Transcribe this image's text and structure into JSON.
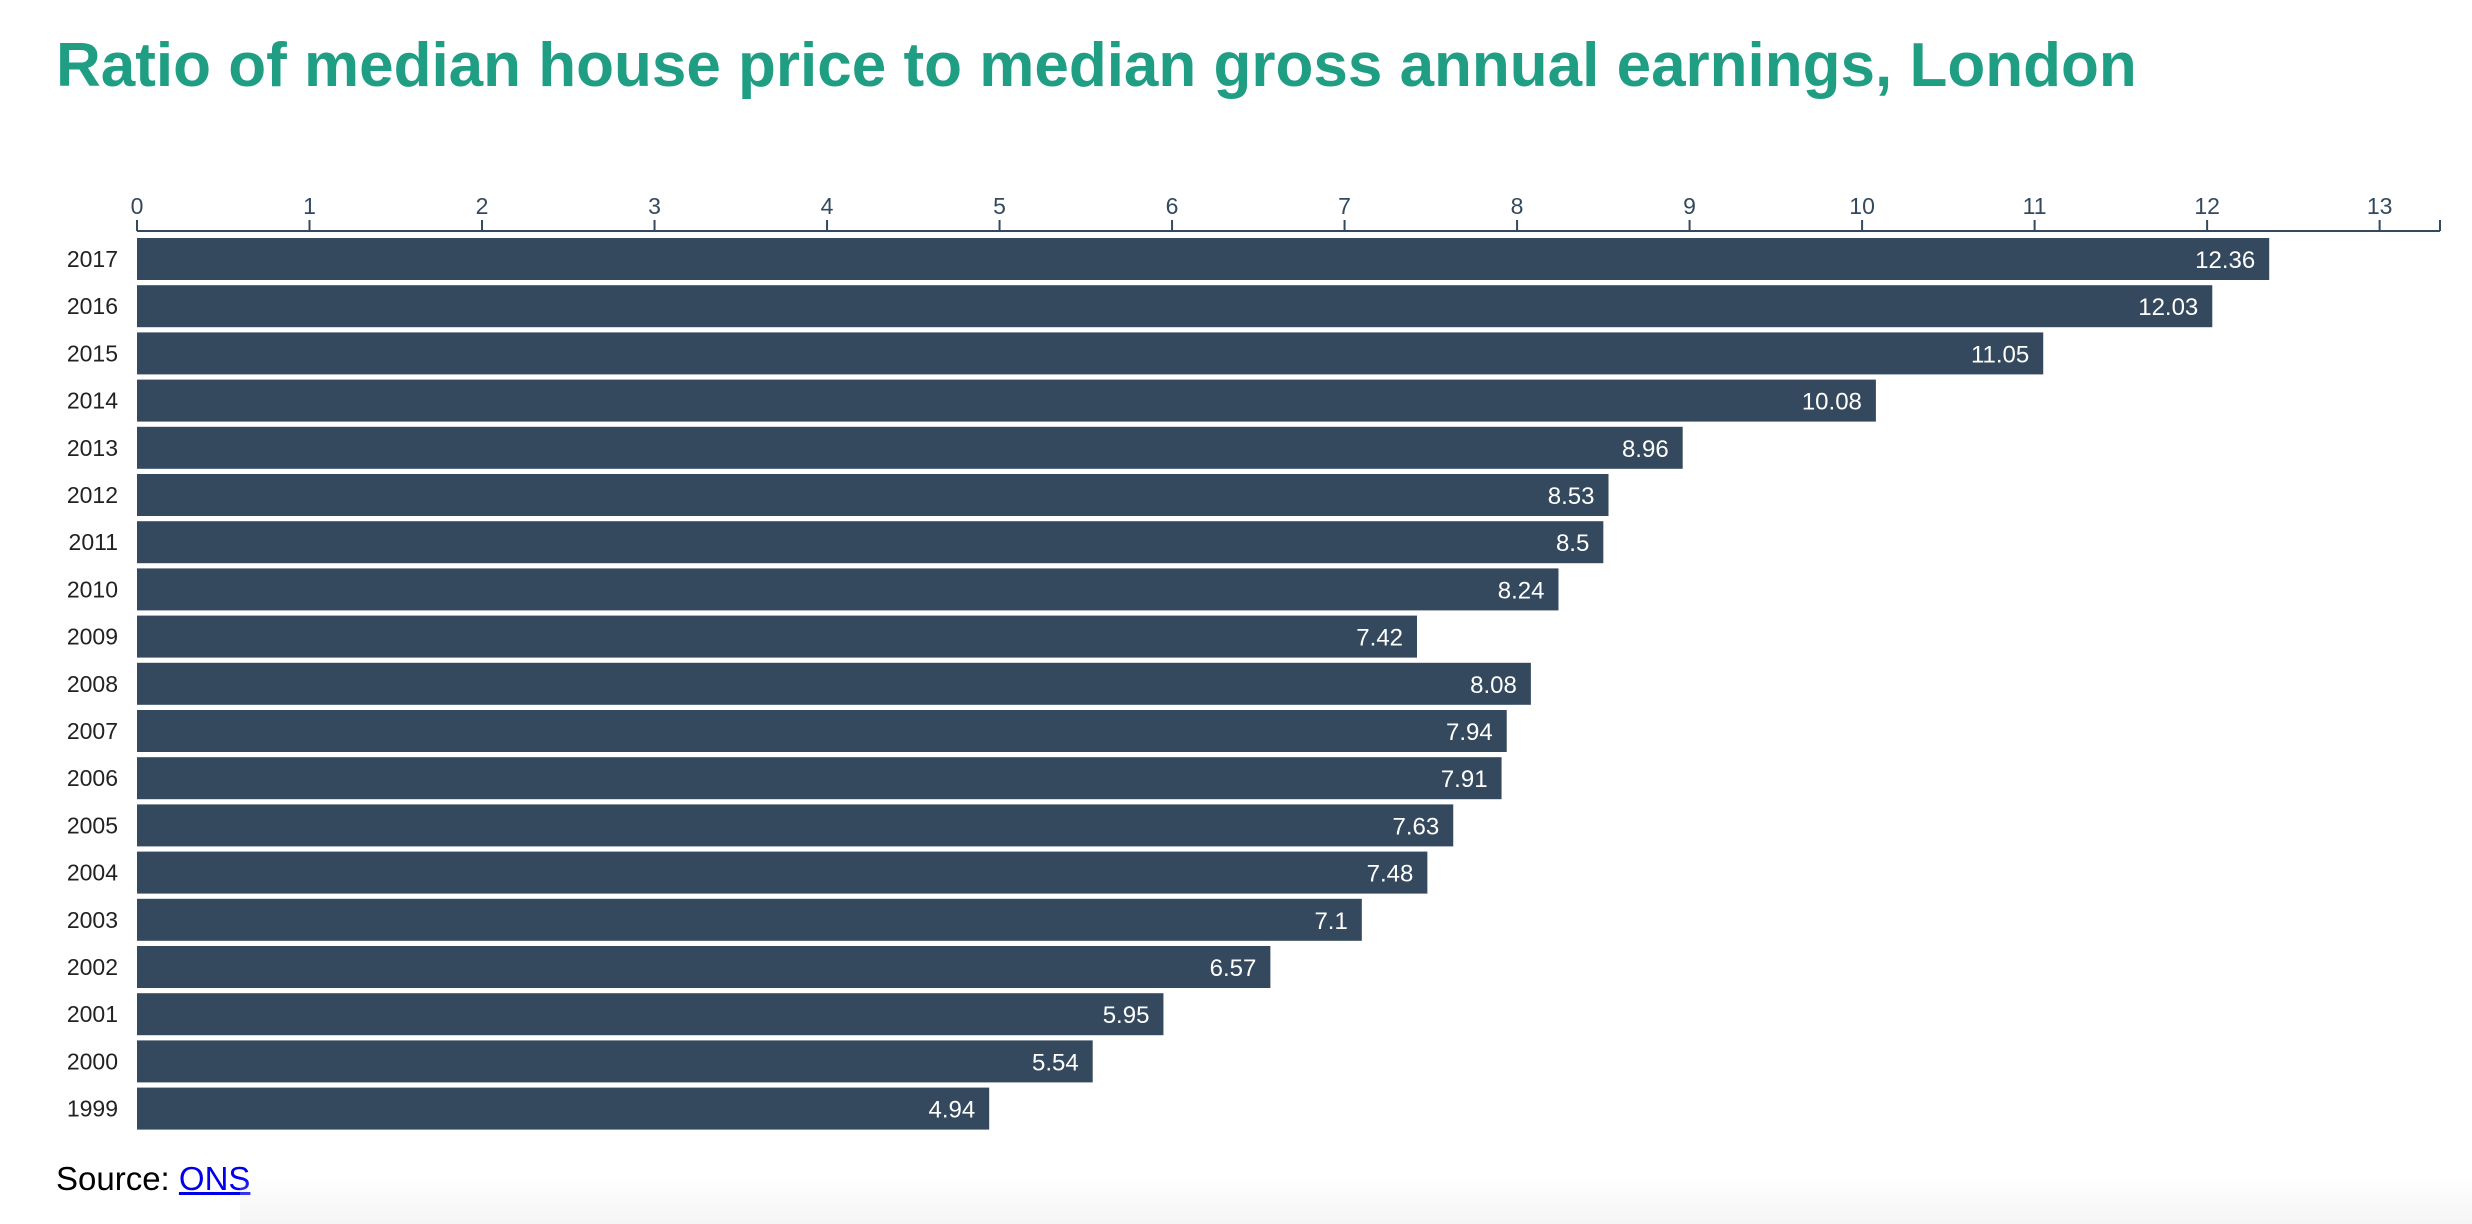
{
  "title": "Ratio of median house price to median gross annual earnings, London",
  "source": {
    "label": "Source:",
    "link_text": "ONS"
  },
  "colors": {
    "title": "#1f9e84",
    "bar": "#34495e",
    "bar_label": "#ffffff",
    "axis": "#34495e"
  },
  "chart_data": {
    "type": "bar",
    "orientation": "horizontal",
    "categories": [
      "2017",
      "2016",
      "2015",
      "2014",
      "2013",
      "2012",
      "2011",
      "2010",
      "2009",
      "2008",
      "2007",
      "2006",
      "2005",
      "2004",
      "2003",
      "2002",
      "2001",
      "2000",
      "1999"
    ],
    "values": [
      12.36,
      12.03,
      11.05,
      10.08,
      8.96,
      8.53,
      8.5,
      8.24,
      7.42,
      8.08,
      7.94,
      7.91,
      7.63,
      7.48,
      7.1,
      6.57,
      5.95,
      5.54,
      4.94
    ],
    "value_labels": [
      "12.36",
      "12.03",
      "11.05",
      "10.08",
      "8.96",
      "8.53",
      "8.5",
      "8.24",
      "7.42",
      "8.08",
      "7.94",
      "7.91",
      "7.63",
      "7.48",
      "7.1",
      "6.57",
      "5.95",
      "5.54",
      "4.94"
    ],
    "xticks": [
      "0",
      "1",
      "2",
      "3",
      "4",
      "5",
      "6",
      "7",
      "8",
      "9",
      "10",
      "11",
      "12",
      "13"
    ],
    "xlim": [
      0,
      13.35
    ],
    "x_axis_position": "top",
    "grid": false
  }
}
